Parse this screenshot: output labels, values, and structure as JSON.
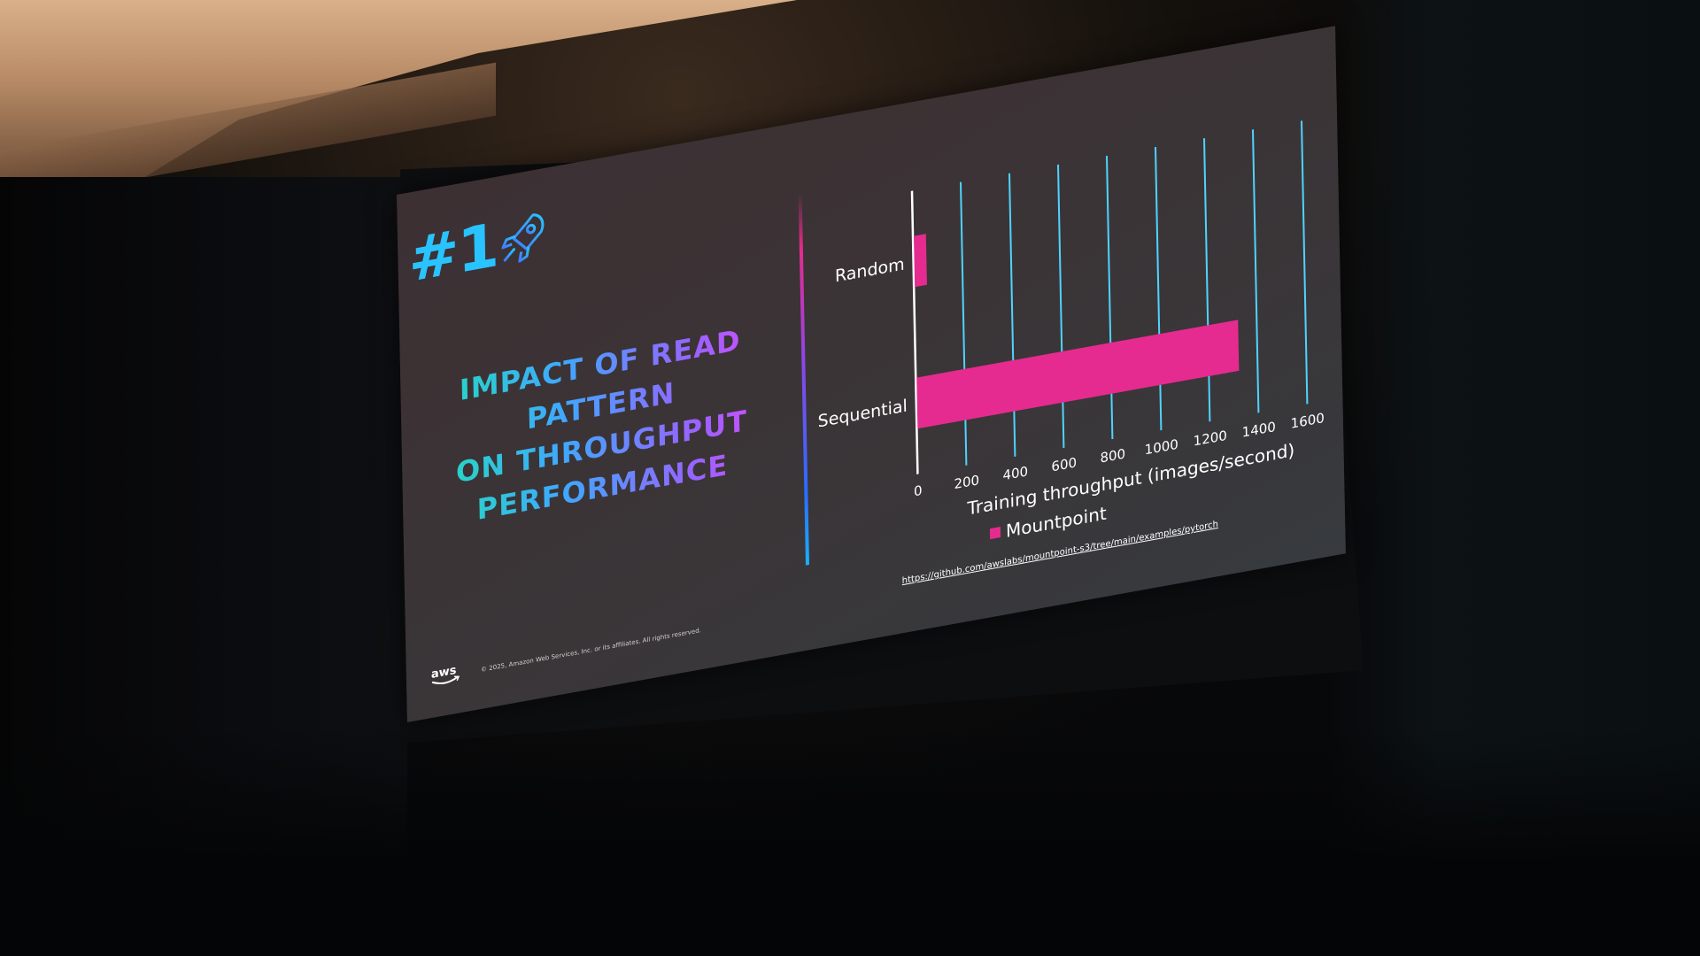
{
  "slide": {
    "number": "#1",
    "title_lines": [
      "IMPACT OF READ PATTERN",
      "ON THROUGHPUT",
      "PERFORMANCE"
    ],
    "legend_label": "Mountpoint",
    "source_url": "https://github.com/awslabs/mountpoint-s3/tree/main/examples/pytorch",
    "logo_text": "aws",
    "copyright": "© 2025, Amazon Web Services, Inc. or its affiliates. All rights reserved."
  },
  "colors": {
    "bar": "#e52b8f",
    "gridline": "#4fd3ff",
    "number": "#29c3ff"
  },
  "chart_data": {
    "type": "bar",
    "orientation": "horizontal",
    "categories": [
      "Random",
      "Sequential"
    ],
    "series": [
      {
        "name": "Mountpoint",
        "values": [
          50,
          1320
        ]
      }
    ],
    "xlabel": "Training throughput (images/second)",
    "ylabel": "",
    "xlim": [
      0,
      1600
    ],
    "xticks": [
      "0",
      "200",
      "400",
      "600",
      "800",
      "1000",
      "1200",
      "1400",
      "1600"
    ],
    "grid": true,
    "legend_position": "bottom"
  }
}
